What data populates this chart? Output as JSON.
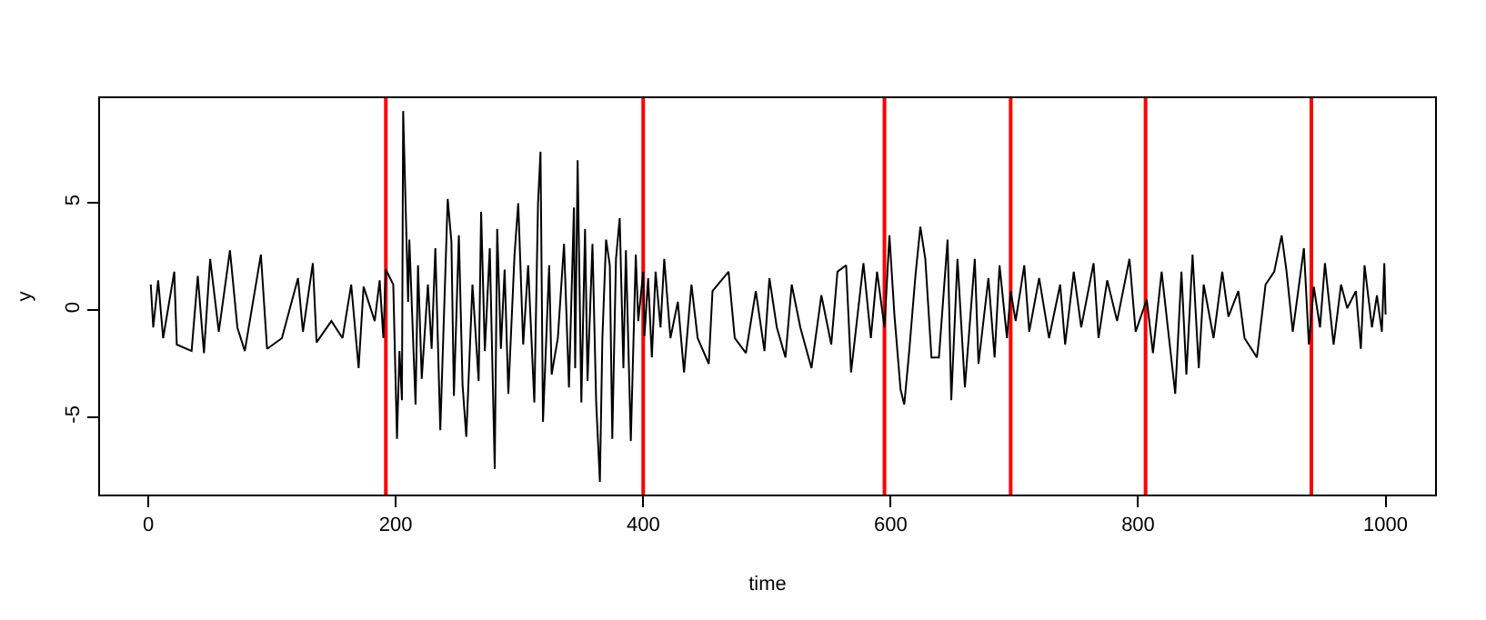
{
  "chart_data": {
    "type": "line",
    "xlabel": "time",
    "ylabel": "y",
    "xlim": [
      -39,
      1040
    ],
    "xticks": [
      0,
      200,
      400,
      600,
      800,
      1000
    ],
    "ylim": [
      -8.6,
      9.9
    ],
    "yticks": [
      -5,
      0,
      5
    ],
    "marker": "none",
    "line_style": "solid",
    "x": [
      2,
      4,
      8,
      12,
      21,
      23,
      35,
      40,
      45,
      50,
      57,
      66,
      72,
      78,
      91,
      96,
      108,
      121,
      125,
      133,
      136,
      148,
      157,
      164,
      170,
      174,
      183,
      187,
      190,
      192,
      198,
      201,
      203,
      205,
      206,
      210,
      211,
      216,
      218,
      221,
      226,
      229,
      232,
      236,
      242,
      245,
      247,
      251,
      254,
      257,
      262,
      267,
      269,
      272,
      276,
      280,
      282,
      285,
      288,
      291,
      296,
      299,
      303,
      307,
      312,
      315,
      317,
      319,
      324,
      326,
      331,
      336,
      340,
      344,
      345,
      347,
      350,
      353,
      355,
      359,
      362,
      365,
      367,
      370,
      373,
      375,
      378,
      381,
      384,
      386,
      390,
      394,
      396,
      400,
      401,
      404,
      407,
      410,
      414,
      417,
      422,
      428,
      433,
      439,
      444,
      453,
      456,
      469,
      474,
      483,
      491,
      498,
      502,
      508,
      515,
      520,
      527,
      536,
      544,
      552,
      557,
      564,
      568,
      578,
      584,
      589,
      595,
      599,
      603,
      608,
      611,
      615,
      620,
      624,
      628,
      633,
      639,
      646,
      649,
      654,
      660,
      668,
      671,
      679,
      684,
      688,
      694,
      697,
      701,
      708,
      712,
      720,
      728,
      737,
      741,
      748,
      754,
      764,
      768,
      775,
      783,
      793,
      798,
      807,
      812,
      819,
      824,
      830,
      835,
      839,
      844,
      849,
      853,
      861,
      868,
      873,
      881,
      886,
      896,
      903,
      910,
      916,
      920,
      925,
      934,
      938,
      942,
      947,
      951,
      958,
      964,
      969,
      976,
      980,
      983,
      989,
      993,
      997,
      999,
      1000
    ],
    "series": [
      {
        "color": "#000000",
        "values": [
          1.2,
          -0.8,
          1.4,
          -1.3,
          1.8,
          -1.6,
          -1.9,
          1.6,
          -2.0,
          2.4,
          -1.0,
          2.8,
          -0.8,
          -1.9,
          2.6,
          -1.8,
          -1.3,
          1.5,
          -1.0,
          2.2,
          -1.5,
          -0.5,
          -1.3,
          1.2,
          -2.7,
          1.1,
          -0.5,
          1.4,
          -1.3,
          1.9,
          1.2,
          -6.0,
          -1.9,
          -4.2,
          9.3,
          0.4,
          3.3,
          -4.4,
          2.1,
          -3.2,
          1.2,
          -1.8,
          2.9,
          -5.6,
          5.2,
          3.2,
          -4.0,
          3.5,
          -3.5,
          -5.9,
          1.2,
          -3.3,
          4.6,
          -1.9,
          2.9,
          -7.4,
          3.8,
          -1.8,
          1.9,
          -3.9,
          2.6,
          5.0,
          -1.6,
          2.1,
          -4.3,
          5.0,
          7.4,
          -5.2,
          2.1,
          -3.0,
          -1.3,
          3.1,
          -3.6,
          4.8,
          -2.7,
          7.0,
          -4.3,
          3.8,
          -3.3,
          3.1,
          -4.3,
          -8.0,
          -1.3,
          3.3,
          2.1,
          -6.0,
          2.4,
          4.3,
          -2.7,
          2.8,
          -6.1,
          2.6,
          -0.5,
          1.8,
          -1.2,
          1.5,
          -2.2,
          1.8,
          -0.8,
          2.4,
          -1.3,
          0.4,
          -2.9,
          1.2,
          -1.3,
          -2.5,
          0.9,
          1.8,
          -1.3,
          -2.0,
          0.9,
          -1.9,
          1.5,
          -0.8,
          -2.2,
          1.2,
          -0.8,
          -2.7,
          0.7,
          -1.6,
          1.8,
          2.1,
          -2.9,
          2.2,
          -1.3,
          1.8,
          -0.8,
          3.5,
          -0.2,
          -3.7,
          -4.4,
          -1.9,
          1.6,
          3.9,
          2.4,
          -2.2,
          -2.2,
          3.3,
          -4.2,
          2.4,
          -3.6,
          2.4,
          -2.5,
          1.5,
          -2.2,
          2.1,
          -1.3,
          0.9,
          -0.5,
          2.1,
          -1.0,
          1.5,
          -1.3,
          1.2,
          -1.6,
          1.8,
          -0.8,
          2.2,
          -1.3,
          1.4,
          -0.5,
          2.4,
          -1.0,
          0.5,
          -2.0,
          1.8,
          -0.8,
          -3.9,
          1.8,
          -3.0,
          2.6,
          -2.7,
          1.2,
          -1.3,
          1.8,
          -0.3,
          0.9,
          -1.3,
          -2.2,
          1.2,
          1.8,
          3.5,
          1.8,
          -1.0,
          2.9,
          -1.6,
          1.1,
          -0.8,
          2.2,
          -1.6,
          1.2,
          0.1,
          0.9,
          -1.8,
          2.1,
          -0.8,
          0.7,
          -1.0,
          2.2,
          -0.2
        ]
      }
    ],
    "ref_lines": [
      {
        "axis": "x",
        "value": 192,
        "color": "#ff0000"
      },
      {
        "axis": "x",
        "value": 400,
        "color": "#ff0000"
      },
      {
        "axis": "x",
        "value": 595,
        "color": "#ff0000"
      },
      {
        "axis": "x",
        "value": 697,
        "color": "#ff0000"
      },
      {
        "axis": "x",
        "value": 806,
        "color": "#ff0000"
      },
      {
        "axis": "x",
        "value": 940,
        "color": "#ff0000"
      }
    ]
  }
}
